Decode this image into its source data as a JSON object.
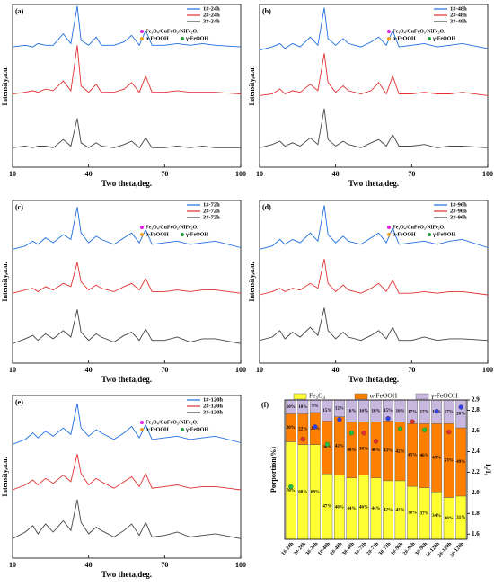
{
  "chart_data": [
    {
      "type": "line",
      "title": "(a)",
      "xlabel": "Two theta,deg.",
      "ylabel": "Intensity,a.u.",
      "x": [
        10,
        15,
        18,
        20,
        23,
        26,
        30,
        33,
        35.5,
        37,
        40,
        43,
        45,
        50,
        54,
        57,
        60,
        62.5,
        65,
        70,
        75,
        80,
        85,
        90,
        100
      ],
      "xlim": [
        10,
        100
      ],
      "xticks": [
        10,
        40,
        70,
        100
      ],
      "ylim": [
        0,
        100
      ],
      "phase_legend": [
        "Fe₃O₄/CuFeO₂/NiFe₂O₄",
        "α-FeOOH",
        "γ-FeOOH"
      ],
      "phase_colors": [
        "#e020e0",
        "#f0a020",
        "#20a040"
      ],
      "series": [
        {
          "name": "1#-24h",
          "color": "#1f6fe0",
          "values": [
            74,
            75,
            74,
            76,
            75,
            75,
            82,
            76,
            99,
            78,
            75,
            80,
            75,
            75,
            77,
            81,
            75,
            84,
            75,
            75,
            76,
            75,
            76,
            75,
            74
          ]
        },
        {
          "name": "2#-24h",
          "color": "#e03030",
          "values": [
            45,
            46,
            47,
            46,
            48,
            47,
            53,
            47,
            75,
            50,
            46,
            51,
            46,
            46,
            48,
            52,
            46,
            56,
            46,
            46,
            47,
            46,
            46,
            46,
            45
          ]
        },
        {
          "name": "3#-24h",
          "color": "#444444",
          "values": [
            12,
            13,
            12,
            13,
            13,
            12,
            17,
            13,
            30,
            15,
            12,
            15,
            13,
            12,
            14,
            16,
            12,
            18,
            12,
            12,
            13,
            12,
            13,
            12,
            12
          ]
        }
      ]
    },
    {
      "type": "line",
      "title": "(b)",
      "xlabel": "Two theta,deg.",
      "ylabel": "Intensity,a.u.",
      "x": [
        10,
        15,
        18,
        20,
        23,
        26,
        30,
        33,
        35.5,
        37,
        40,
        43,
        45,
        50,
        54,
        57,
        60,
        62.5,
        65,
        70,
        75,
        80,
        85,
        90,
        100
      ],
      "xlim": [
        10,
        100
      ],
      "xticks": [
        10,
        40,
        70,
        100
      ],
      "ylim": [
        0,
        100
      ],
      "phase_legend": [
        "Fe₃O₄/CuFeO₂/NiFe₂O₄",
        "α-FeOOH",
        "γ-FeOOH"
      ],
      "phase_colors": [
        "#e020e0",
        "#f0a020",
        "#20a040"
      ],
      "series": [
        {
          "name": "1#-48h",
          "color": "#1f6fe0",
          "values": [
            72,
            74,
            76,
            73,
            76,
            74,
            80,
            75,
            98,
            79,
            75,
            79,
            76,
            74,
            77,
            80,
            75,
            84,
            74,
            75,
            76,
            74,
            75,
            76,
            73
          ]
        },
        {
          "name": "2#-48h",
          "color": "#e03030",
          "values": [
            44,
            45,
            48,
            45,
            47,
            46,
            51,
            47,
            70,
            52,
            46,
            50,
            47,
            45,
            47,
            52,
            45,
            56,
            45,
            45,
            46,
            45,
            45,
            46,
            44
          ]
        },
        {
          "name": "3#-48h",
          "color": "#444444",
          "values": [
            12,
            14,
            16,
            13,
            15,
            13,
            18,
            14,
            36,
            17,
            13,
            16,
            14,
            12,
            15,
            17,
            13,
            20,
            13,
            13,
            14,
            12,
            13,
            13,
            12
          ]
        }
      ]
    },
    {
      "type": "line",
      "title": "(c)",
      "xlabel": "Two theta,deg.",
      "ylabel": "Intensity,a.u.",
      "x": [
        10,
        15,
        18,
        20,
        23,
        26,
        30,
        33,
        35.5,
        37,
        40,
        43,
        45,
        50,
        54,
        57,
        60,
        62.5,
        65,
        70,
        75,
        80,
        85,
        90,
        100
      ],
      "xlim": [
        10,
        100
      ],
      "xticks": [
        10,
        40,
        70,
        100
      ],
      "ylim": [
        0,
        100
      ],
      "phase_legend": [
        "Fe₃O₄/CuFeO₂/NiFe₂O₄",
        "α-FeOOH",
        "γ-FeOOH"
      ],
      "phase_colors": [
        "#e020e0",
        "#f0a020",
        "#20a040"
      ],
      "series": [
        {
          "name": "1#-72h",
          "color": "#1f6fe0",
          "values": [
            70,
            72,
            75,
            73,
            77,
            74,
            79,
            76,
            96,
            80,
            74,
            78,
            76,
            73,
            77,
            80,
            74,
            82,
            73,
            74,
            75,
            73,
            74,
            75,
            71
          ]
        },
        {
          "name": "2#-72h",
          "color": "#e03030",
          "values": [
            43,
            45,
            46,
            44,
            47,
            45,
            49,
            47,
            62,
            50,
            45,
            48,
            46,
            44,
            47,
            49,
            45,
            52,
            44,
            44,
            45,
            44,
            45,
            45,
            43
          ]
        },
        {
          "name": "3#-72h",
          "color": "#444444",
          "values": [
            12,
            15,
            17,
            14,
            18,
            15,
            20,
            16,
            33,
            19,
            14,
            18,
            16,
            13,
            17,
            19,
            14,
            21,
            14,
            14,
            16,
            13,
            15,
            15,
            12
          ]
        }
      ]
    },
    {
      "type": "line",
      "title": "(d)",
      "xlabel": "Two theta,deg.",
      "ylabel": "Intensity,a.u.",
      "x": [
        10,
        15,
        18,
        20,
        23,
        26,
        30,
        33,
        35.5,
        37,
        40,
        43,
        45,
        50,
        54,
        57,
        60,
        62.5,
        65,
        70,
        75,
        80,
        85,
        90,
        100
      ],
      "xlim": [
        10,
        100
      ],
      "xticks": [
        10,
        40,
        70,
        100
      ],
      "ylim": [
        0,
        100
      ],
      "phase_legend": [
        "Fe₃O₄/CuFeO₂/NiFe₂O₄",
        "α-FeOOH",
        "γ-FeOOH"
      ],
      "phase_colors": [
        "#e020e0",
        "#f0a020",
        "#20a040"
      ],
      "series": [
        {
          "name": "1#-96h",
          "color": "#1f6fe0",
          "values": [
            70,
            72,
            76,
            73,
            76,
            74,
            80,
            75,
            97,
            79,
            74,
            78,
            75,
            73,
            77,
            80,
            74,
            83,
            73,
            74,
            75,
            73,
            75,
            76,
            71
          ]
        },
        {
          "name": "2#-96h",
          "color": "#e03030",
          "values": [
            42,
            44,
            46,
            44,
            46,
            45,
            49,
            46,
            64,
            49,
            44,
            48,
            45,
            43,
            46,
            49,
            44,
            51,
            43,
            43,
            44,
            43,
            44,
            44,
            42
          ]
        },
        {
          "name": "3#-96h",
          "color": "#444444",
          "values": [
            14,
            16,
            20,
            15,
            19,
            16,
            22,
            17,
            34,
            20,
            15,
            19,
            16,
            14,
            17,
            20,
            15,
            22,
            14,
            14,
            16,
            14,
            15,
            15,
            14
          ]
        }
      ]
    },
    {
      "type": "line",
      "title": "(e)",
      "xlabel": "Two theta,deg.",
      "ylabel": "Intensity,a.u.",
      "x": [
        10,
        15,
        18,
        20,
        23,
        26,
        30,
        33,
        35.5,
        37,
        40,
        43,
        45,
        50,
        54,
        57,
        60,
        62.5,
        65,
        70,
        75,
        80,
        85,
        90,
        100
      ],
      "xlim": [
        10,
        100
      ],
      "xticks": [
        10,
        40,
        70,
        100
      ],
      "ylim": [
        0,
        100
      ],
      "phase_legend": [
        "Fe₃O₄/CuFeO₂/NiFe₂O₄",
        "α-FeOOH",
        "γ-FeOOH"
      ],
      "phase_colors": [
        "#e020e0",
        "#f0a020",
        "#20a040"
      ],
      "series": [
        {
          "name": "1#-120h",
          "color": "#1f6fe0",
          "values": [
            70,
            73,
            77,
            74,
            78,
            75,
            80,
            76,
            95,
            80,
            75,
            79,
            77,
            73,
            77,
            81,
            74,
            82,
            73,
            74,
            75,
            73,
            74,
            75,
            71
          ]
        },
        {
          "name": "2#-120h",
          "color": "#e03030",
          "values": [
            42,
            45,
            48,
            45,
            49,
            46,
            51,
            47,
            64,
            52,
            45,
            49,
            47,
            43,
            47,
            50,
            44,
            52,
            43,
            44,
            45,
            43,
            44,
            44,
            42
          ]
        },
        {
          "name": "3#-120h",
          "color": "#444444",
          "values": [
            12,
            16,
            20,
            15,
            21,
            16,
            23,
            17,
            36,
            22,
            15,
            19,
            17,
            13,
            17,
            21,
            14,
            22,
            13,
            14,
            16,
            13,
            14,
            15,
            12
          ]
        }
      ]
    },
    {
      "type": "bar",
      "stacked": true,
      "title": "(f)",
      "ylabel": "Porportion(%)",
      "y2label": "I₂/I₁",
      "categories": [
        "1#-24h",
        "2#-24h",
        "3#-24h",
        "1#-48h",
        "2#-48h",
        "3#-48h",
        "1#-72h",
        "2#-72h",
        "3#-72h",
        "1#-96h",
        "2#-96h",
        "3#-96h",
        "1#-120h",
        "2#-120h",
        "3#-120h"
      ],
      "ylim": [
        0,
        100
      ],
      "y2lim": [
        1.55,
        2.9
      ],
      "y2ticks": [
        1.6,
        1.8,
        {
          "value": 2,
          "label": "2.0"
        },
        2.2,
        2.4,
        2.6,
        2.8,
        2.9
      ],
      "series": [
        {
          "name": "Fe₃O₄",
          "color": "#ffff33",
          "values": [
            70,
            68,
            68,
            47,
            46,
            44,
            46,
            44,
            42,
            42,
            38,
            37,
            34,
            30,
            31
          ],
          "value_labels": [
            "70%",
            "68%",
            "68%",
            "47%",
            "46%",
            "44%",
            "46%",
            "44%",
            "42%",
            "42%",
            "38%",
            "37%",
            "34%",
            "30%",
            "31%"
          ]
        },
        {
          "name": "α-FeOOH",
          "color": "#ff8000",
          "values": [
            20,
            22,
            23,
            38,
            42,
            40,
            38,
            40,
            43,
            42,
            45,
            46,
            49,
            53,
            49
          ],
          "value_labels": [
            "20%",
            "22%",
            "23%",
            "38%",
            "42%",
            "40%",
            "38%",
            "40%",
            "43%",
            "42%",
            "45%",
            "46%",
            "49%",
            "53%",
            "49%"
          ]
        },
        {
          "name": "γ-FeOOH",
          "color": "#c8b8e0",
          "values": [
            10,
            10,
            9,
            15,
            12,
            16,
            16,
            16,
            15,
            16,
            17,
            17,
            17,
            17,
            20
          ],
          "value_labels": [
            "10%",
            "10%",
            "9%",
            "15%",
            "12%",
            "16%",
            "16%",
            "16%",
            "15%",
            "16%",
            "17%",
            "17%",
            "17%",
            "17%",
            "20%"
          ]
        },
        {
          "type": "scatter",
          "axis": "y2",
          "values": [
            2.06,
            2.52,
            2.64,
            2.47,
            2.71,
            2.58,
            2.58,
            2.5,
            2.72,
            2.62,
            2.69,
            2.61,
            2.79,
            2.59,
            2.83
          ],
          "colors": [
            "#20c040",
            "#e03030",
            "#3040e0",
            "#20c040",
            "#3040e0",
            "#20c040",
            "#e03030",
            "#e03030",
            "#3040e0",
            "#20c040",
            "#e03030",
            "#20c040",
            "#3040e0",
            "#e03030",
            "#3040e0"
          ]
        }
      ]
    }
  ]
}
